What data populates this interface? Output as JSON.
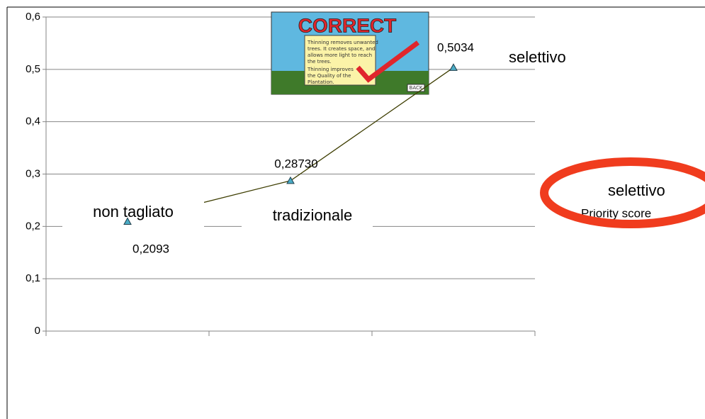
{
  "chart_data": {
    "type": "line",
    "categories": [
      "non tagliato",
      "tradizionale",
      "selettivo"
    ],
    "series": [
      {
        "name": "Priority score",
        "color": "#3d3d00",
        "marker_color": "#4bacc6",
        "values": [
          0.2093,
          0.2873,
          0.5034
        ],
        "value_labels": [
          "0,2093",
          "0,28730",
          "0,5034"
        ]
      }
    ],
    "ylim": [
      0,
      0.6
    ],
    "yticks": [
      0,
      {
        "value": 0.1,
        "label": "0,1"
      },
      {
        "value": 0.2,
        "label": "0,2"
      },
      {
        "value": 0.3,
        "label": "0,3"
      },
      {
        "value": 0.4,
        "label": "0,4"
      },
      {
        "value": 0.5,
        "label": "0,5"
      },
      {
        "value": 0.6,
        "label": "0,6"
      }
    ],
    "grid": true,
    "annotation": "selettivo",
    "annotation_color": "#f03c1e"
  },
  "comic": {
    "title": "CORRECT",
    "lines": [
      "Thinning removes unwanted",
      "trees. It creates space, and",
      "allows more light to reach",
      "the trees.",
      "Thinning improves",
      "the Quality of the",
      "Plantation."
    ],
    "button": "BACK"
  }
}
